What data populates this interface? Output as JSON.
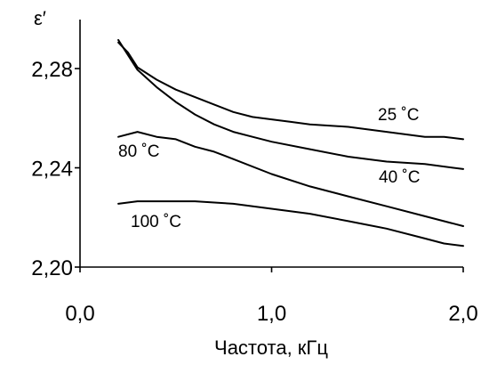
{
  "chart_data": {
    "type": "line",
    "ylabel": "ε′",
    "xlabel": "Частота, кГц",
    "xlim": [
      0,
      2.0
    ],
    "ylim": [
      2.2,
      2.3
    ],
    "x_ticks": [
      0.0,
      1.0,
      2.0
    ],
    "x_tick_labels": [
      "0,0",
      "1,0",
      "2,0"
    ],
    "y_ticks": [
      2.2,
      2.24,
      2.28
    ],
    "y_tick_labels": [
      "2,20",
      "2,24",
      "2,28"
    ],
    "grid": false,
    "series": [
      {
        "name": "25 ˚C",
        "x": [
          0.2,
          0.25,
          0.3,
          0.4,
          0.5,
          0.6,
          0.7,
          0.8,
          0.9,
          1.0,
          1.1,
          1.2,
          1.4,
          1.6,
          1.8,
          1.9,
          2.0
        ],
        "y": [
          2.2905,
          2.2865,
          2.2805,
          2.2755,
          2.2715,
          2.2685,
          2.2655,
          2.2625,
          2.2605,
          2.2595,
          2.2585,
          2.2575,
          2.2565,
          2.2545,
          2.2525,
          2.2525,
          2.2515
        ]
      },
      {
        "name": "40 ˚C",
        "x": [
          0.2,
          0.3,
          0.4,
          0.5,
          0.6,
          0.7,
          0.8,
          0.9,
          1.0,
          1.2,
          1.4,
          1.6,
          1.8,
          2.0
        ],
        "y": [
          2.2915,
          2.2795,
          2.2725,
          2.2665,
          2.2615,
          2.2575,
          2.2545,
          2.2525,
          2.2505,
          2.2475,
          2.2445,
          2.2425,
          2.2415,
          2.2395
        ]
      },
      {
        "name": "80 ˚C",
        "x": [
          0.2,
          0.3,
          0.4,
          0.5,
          0.6,
          0.7,
          0.8,
          1.0,
          1.2,
          1.4,
          1.6,
          1.8,
          2.0
        ],
        "y": [
          2.2525,
          2.2545,
          2.2525,
          2.2515,
          2.2485,
          2.2465,
          2.2435,
          2.2375,
          2.2325,
          2.2285,
          2.2245,
          2.2205,
          2.2165
        ]
      },
      {
        "name": "100 ˚C",
        "x": [
          0.2,
          0.3,
          0.4,
          0.5,
          0.6,
          0.8,
          1.0,
          1.2,
          1.4,
          1.6,
          1.8,
          1.9,
          2.0
        ],
        "y": [
          2.2255,
          2.2265,
          2.2265,
          2.2265,
          2.2265,
          2.2255,
          2.2235,
          2.2215,
          2.2185,
          2.2155,
          2.2115,
          2.2095,
          2.2085
        ]
      }
    ]
  }
}
